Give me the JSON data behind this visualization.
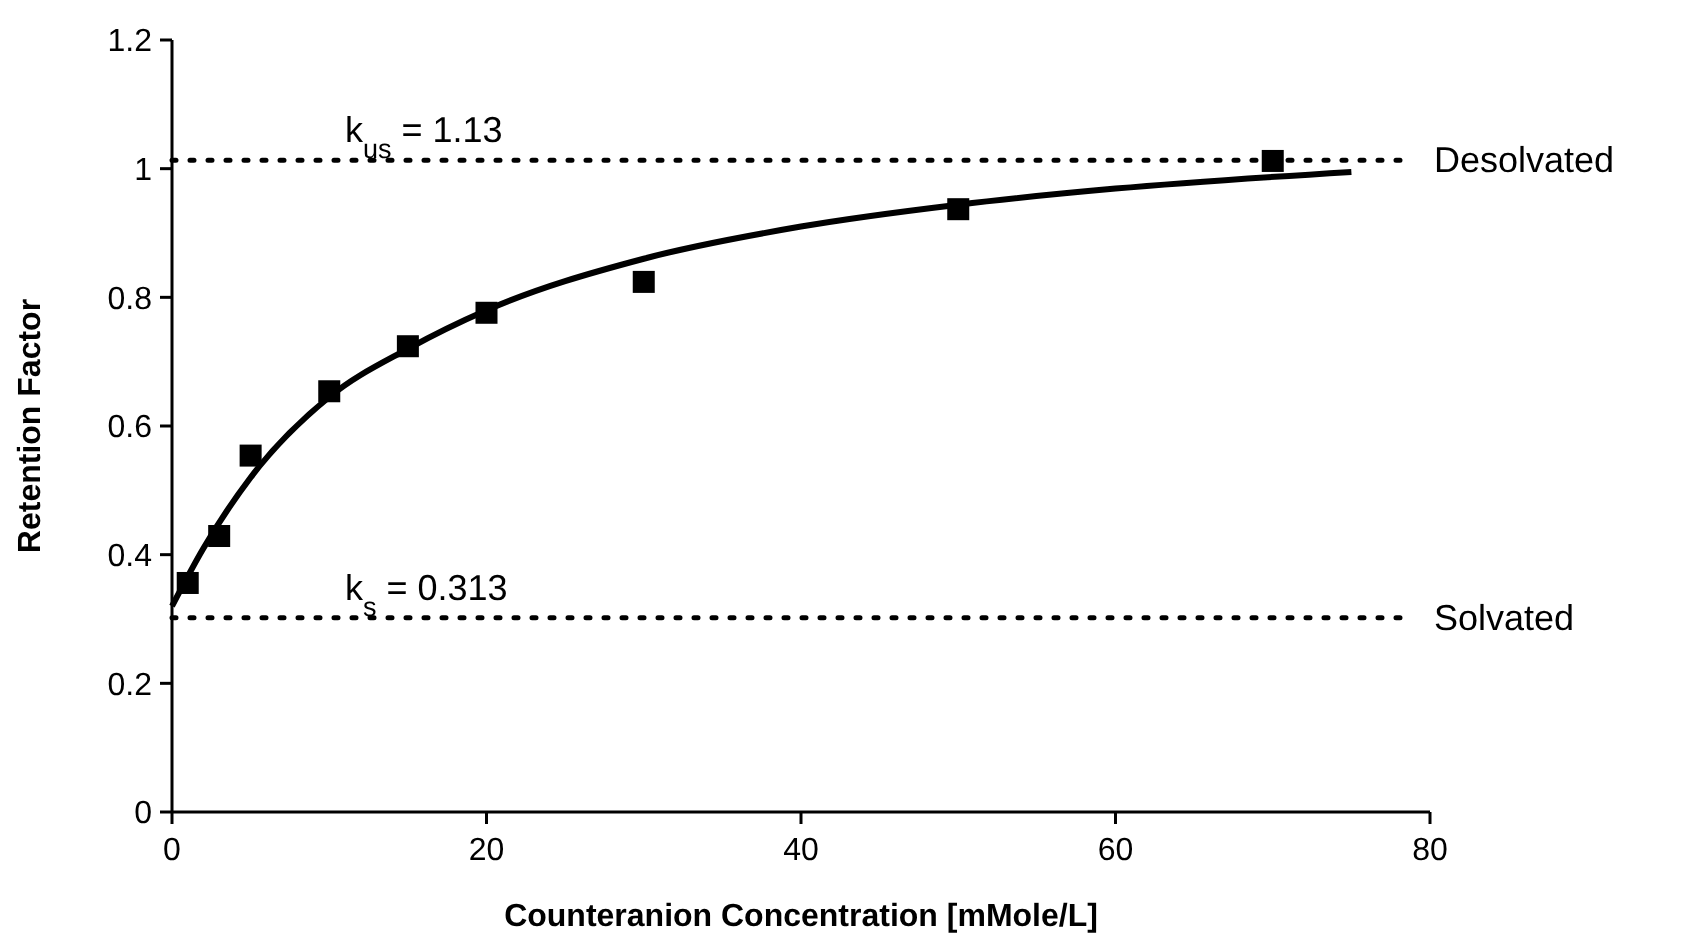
{
  "chart_data": {
    "type": "scatter",
    "xlabel": "Counteranion Concentration [mMole/L]",
    "ylabel": "Retention Factor",
    "xlim": [
      0,
      80
    ],
    "xticks": [
      0,
      20,
      40,
      60,
      80
    ],
    "ylim": [
      0,
      1.2
    ],
    "yticks": [
      0,
      0.2,
      0.4,
      0.6,
      0.8,
      1,
      1.2
    ],
    "grid": false,
    "series": [
      {
        "color": "#000000",
        "marker": "square",
        "x": [
          1,
          3,
          5,
          10,
          15,
          20,
          30,
          50,
          70
        ],
        "values": [
          0.356,
          0.429,
          0.554,
          0.654,
          0.724,
          0.776,
          0.824,
          0.937,
          1.012
        ]
      },
      {
        "type": "line",
        "color": "#000000",
        "marker": "none",
        "line_style": "solid",
        "x": [
          0,
          2,
          5,
          10,
          15,
          20,
          30,
          40,
          50,
          60,
          75
        ],
        "values": [
          0.32,
          0.41,
          0.52,
          0.645,
          0.72,
          0.78,
          0.86,
          0.91,
          0.944,
          0.969,
          0.995
        ]
      }
    ],
    "ref_lines": [
      {
        "axis": "y",
        "value": 1.013,
        "label": "Desolvated",
        "color": "#000000",
        "line_style": "dotted"
      },
      {
        "axis": "y",
        "value": 0.302,
        "label": "Solvated",
        "color": "#000000",
        "line_style": "dotted"
      }
    ],
    "annotations": [
      {
        "text": "k$_{us}$ = 1.13",
        "x": 11,
        "y": 1.013
      },
      {
        "text": "k$_{s}$ = 0.313",
        "x": 11,
        "y": 0.302
      }
    ]
  }
}
